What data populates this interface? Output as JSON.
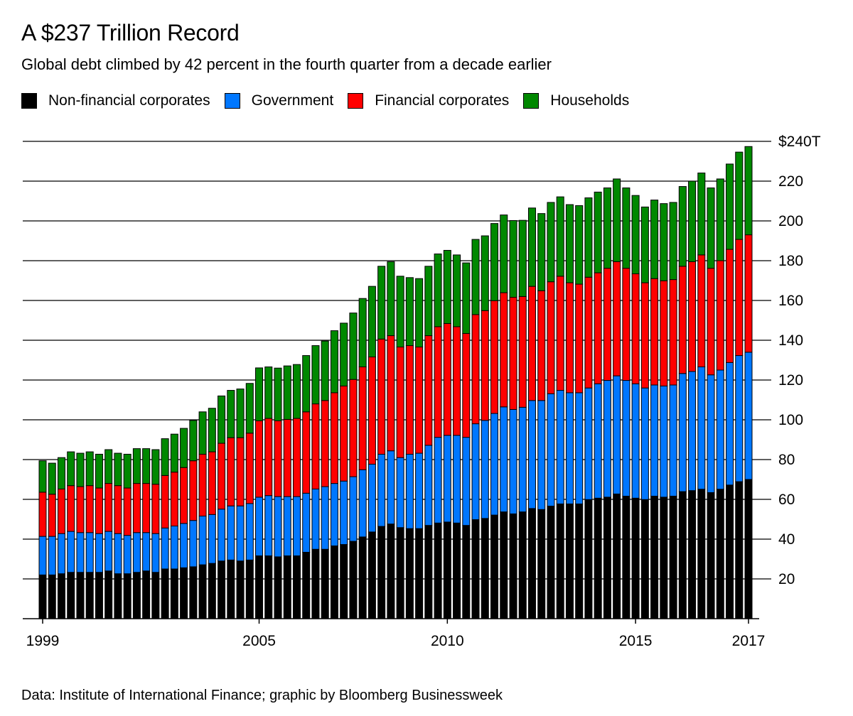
{
  "chart_data": {
    "type": "bar",
    "stacked": true,
    "title": "A $237 Trillion Record",
    "subtitle": "Global debt climbed by 42 percent in the fourth quarter from a decade earlier",
    "source": "Data: Institute of International Finance; graphic by Bloomberg Businessweek",
    "legend_position": "top-left",
    "grid": true,
    "ylim": [
      0,
      240
    ],
    "y_ticks": [
      {
        "value": 20,
        "label": "20"
      },
      {
        "value": 40,
        "label": "40"
      },
      {
        "value": 60,
        "label": "60"
      },
      {
        "value": 80,
        "label": "80"
      },
      {
        "value": 100,
        "label": "100"
      },
      {
        "value": 120,
        "label": "120"
      },
      {
        "value": 140,
        "label": "140"
      },
      {
        "value": 160,
        "label": "160"
      },
      {
        "value": 180,
        "label": "180"
      },
      {
        "value": 200,
        "label": "200"
      },
      {
        "value": 220,
        "label": "220"
      },
      {
        "value": 240,
        "label": "$240T"
      }
    ],
    "x_ticks": [
      {
        "category": "1999 Q1",
        "label": "1999"
      },
      {
        "category": "2004 Q4",
        "label": "2005"
      },
      {
        "category": "2009 Q4",
        "label": "2010"
      },
      {
        "category": "2014 Q4",
        "label": "2015"
      },
      {
        "category": "2017 Q4",
        "label": "2017"
      }
    ],
    "categories": [
      "1999 Q1",
      "1999 Q2",
      "1999 Q3",
      "1999 Q4",
      "2000 Q1",
      "2000 Q2",
      "2000 Q3",
      "2000 Q4",
      "2001 Q1",
      "2001 Q2",
      "2001 Q3",
      "2001 Q4",
      "2002 Q1",
      "2002 Q2",
      "2002 Q3",
      "2002 Q4",
      "2003 Q1",
      "2003 Q2",
      "2003 Q3",
      "2003 Q4",
      "2004 Q1",
      "2004 Q2",
      "2004 Q3",
      "2004 Q4",
      "2005 Q1",
      "2005 Q2",
      "2005 Q3",
      "2005 Q4",
      "2006 Q1",
      "2006 Q2",
      "2006 Q3",
      "2006 Q4",
      "2007 Q1",
      "2007 Q2",
      "2007 Q3",
      "2007 Q4",
      "2008 Q1",
      "2008 Q2",
      "2008 Q3",
      "2008 Q4",
      "2009 Q1",
      "2009 Q2",
      "2009 Q3",
      "2009 Q4",
      "2010 Q1",
      "2010 Q2",
      "2010 Q3",
      "2010 Q4",
      "2011 Q1",
      "2011 Q2",
      "2011 Q3",
      "2011 Q4",
      "2012 Q1",
      "2012 Q2",
      "2012 Q3",
      "2012 Q4",
      "2013 Q1",
      "2013 Q2",
      "2013 Q3",
      "2013 Q4",
      "2014 Q1",
      "2014 Q2",
      "2014 Q3",
      "2014 Q4",
      "2015 Q1",
      "2015 Q2",
      "2015 Q3",
      "2015 Q4",
      "2016 Q1",
      "2016 Q2",
      "2016 Q3",
      "2016 Q4",
      "2017 Q1",
      "2017 Q2",
      "2017 Q3",
      "2017 Q4"
    ],
    "series": [
      {
        "name": "Non-financial corporates",
        "color": "#000000",
        "values": [
          22,
          22,
          22.6,
          23.3,
          23.3,
          23.3,
          23.3,
          24,
          22.6,
          22.6,
          23.3,
          24,
          23.3,
          25,
          25,
          25.6,
          26.1,
          27.1,
          27.8,
          29,
          29.5,
          29,
          29.5,
          31.6,
          31.6,
          31.1,
          31.6,
          31.6,
          33.4,
          34.9,
          34.9,
          36.6,
          37.3,
          38.9,
          41.1,
          43.6,
          46.4,
          47.6,
          45.8,
          45.3,
          45.3,
          46.9,
          48.1,
          48.6,
          48.1,
          46.9,
          49.8,
          50.4,
          52.1,
          53.7,
          52.7,
          53.7,
          55.4,
          54.9,
          56.6,
          57.7,
          57.7,
          57.7,
          59.9,
          60.6,
          61.1,
          62.7,
          61.6,
          60.6,
          59.9,
          61.6,
          61.1,
          61.6,
          63.9,
          64.4,
          65.1,
          63.4,
          65.1,
          67.2,
          68.9,
          70
        ]
      },
      {
        "name": "Government",
        "color": "#0077ff",
        "values": [
          19.4,
          19.4,
          20.2,
          20.6,
          20,
          20,
          19.5,
          19.9,
          20.2,
          19.3,
          20,
          19.3,
          19.5,
          20.6,
          21.6,
          22.3,
          23.3,
          24.5,
          24.6,
          26.1,
          27.2,
          27.7,
          28.4,
          29.5,
          30.3,
          30.3,
          29.8,
          29.8,
          29.7,
          30.3,
          31.5,
          31.4,
          31.9,
          32.5,
          33.8,
          34.1,
          36.3,
          36.8,
          35.2,
          37.4,
          37.9,
          40.3,
          43.1,
          43.6,
          44.1,
          44.3,
          48.2,
          49.3,
          51.1,
          52.8,
          52.5,
          52.6,
          54.3,
          54.8,
          56.5,
          57.1,
          55.9,
          55.9,
          56.1,
          57.5,
          58.7,
          59.4,
          58.2,
          57.5,
          56.1,
          55.9,
          55.9,
          55.9,
          59.4,
          59.9,
          61.5,
          59.2,
          59.9,
          61.6,
          63.4,
          64
        ]
      },
      {
        "name": "Financial corporates",
        "color": "#ff0000",
        "values": [
          22.2,
          21.2,
          22.4,
          23,
          23.1,
          23.6,
          22.9,
          24.1,
          24.1,
          23.8,
          24.7,
          24.7,
          24.8,
          26.4,
          27.1,
          28.1,
          30,
          31.1,
          31.5,
          33.1,
          34.3,
          34.3,
          35.4,
          38.4,
          38.8,
          38.1,
          38.8,
          39.3,
          40.9,
          42.8,
          43.3,
          45.6,
          47.8,
          48.9,
          51.7,
          53.9,
          57.9,
          57.9,
          55.6,
          54.6,
          53.4,
          55.1,
          55.6,
          56.2,
          54.6,
          52.2,
          54.9,
          55.2,
          56.7,
          57.4,
          56.4,
          55.7,
          57.4,
          55.2,
          56.3,
          57.4,
          55.3,
          54.6,
          55.7,
          55.8,
          56.4,
          57.4,
          56.4,
          55.3,
          52.9,
          53.5,
          52.9,
          53,
          53.9,
          55.2,
          56.3,
          53.6,
          55,
          56.9,
          58.4,
          59
        ]
      },
      {
        "name": "Households",
        "color": "#008800",
        "values": [
          15.8,
          15.6,
          15.8,
          17,
          16.8,
          17,
          17,
          17,
          16.3,
          17,
          17.5,
          17.5,
          17.4,
          18.5,
          19.1,
          19.7,
          20.3,
          21.3,
          21.9,
          23.8,
          23.8,
          24.5,
          25,
          26.6,
          25.9,
          26.5,
          26.9,
          27.1,
          28.3,
          29.3,
          29.9,
          31.2,
          31.6,
          33.4,
          34.4,
          35.5,
          36.6,
          37.2,
          35.6,
          34.2,
          34.4,
          34.9,
          36.6,
          36.8,
          36.1,
          35.5,
          37.8,
          37.6,
          38.8,
          39.1,
          38.6,
          38.3,
          39.4,
          38.8,
          39.9,
          39.9,
          39.3,
          39.5,
          39.9,
          40.6,
          40.4,
          41.6,
          40.4,
          39.4,
          38.1,
          39.5,
          38.8,
          38.8,
          40.1,
          40.5,
          41.2,
          40.4,
          41.1,
          42.9,
          43.9,
          44.4
        ]
      }
    ]
  }
}
